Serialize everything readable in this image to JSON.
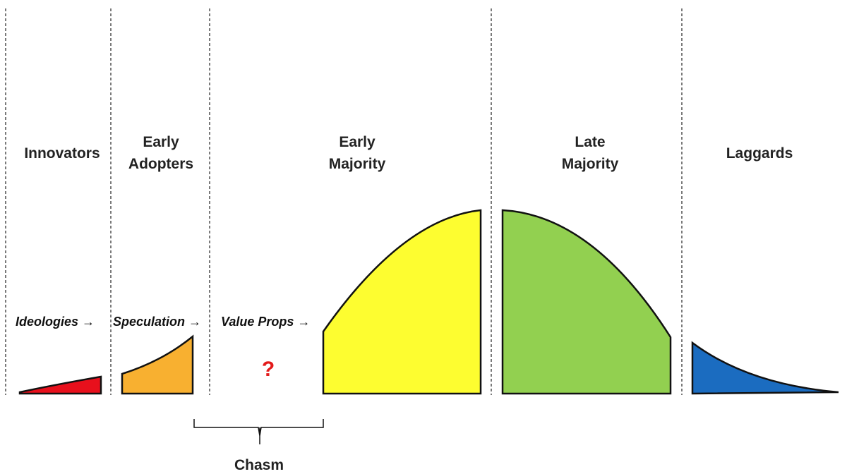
{
  "segments": [
    {
      "label": "Innovators"
    },
    {
      "label": "Early\nAdopters"
    },
    {
      "label": "Early\nMajority"
    },
    {
      "label": "Late\nMajority"
    },
    {
      "label": "Laggards"
    }
  ],
  "drivers": [
    "Ideologies →",
    "Speculation →",
    "Value Props →"
  ],
  "gap_mark": "?",
  "chasm_label": "Chasm"
}
